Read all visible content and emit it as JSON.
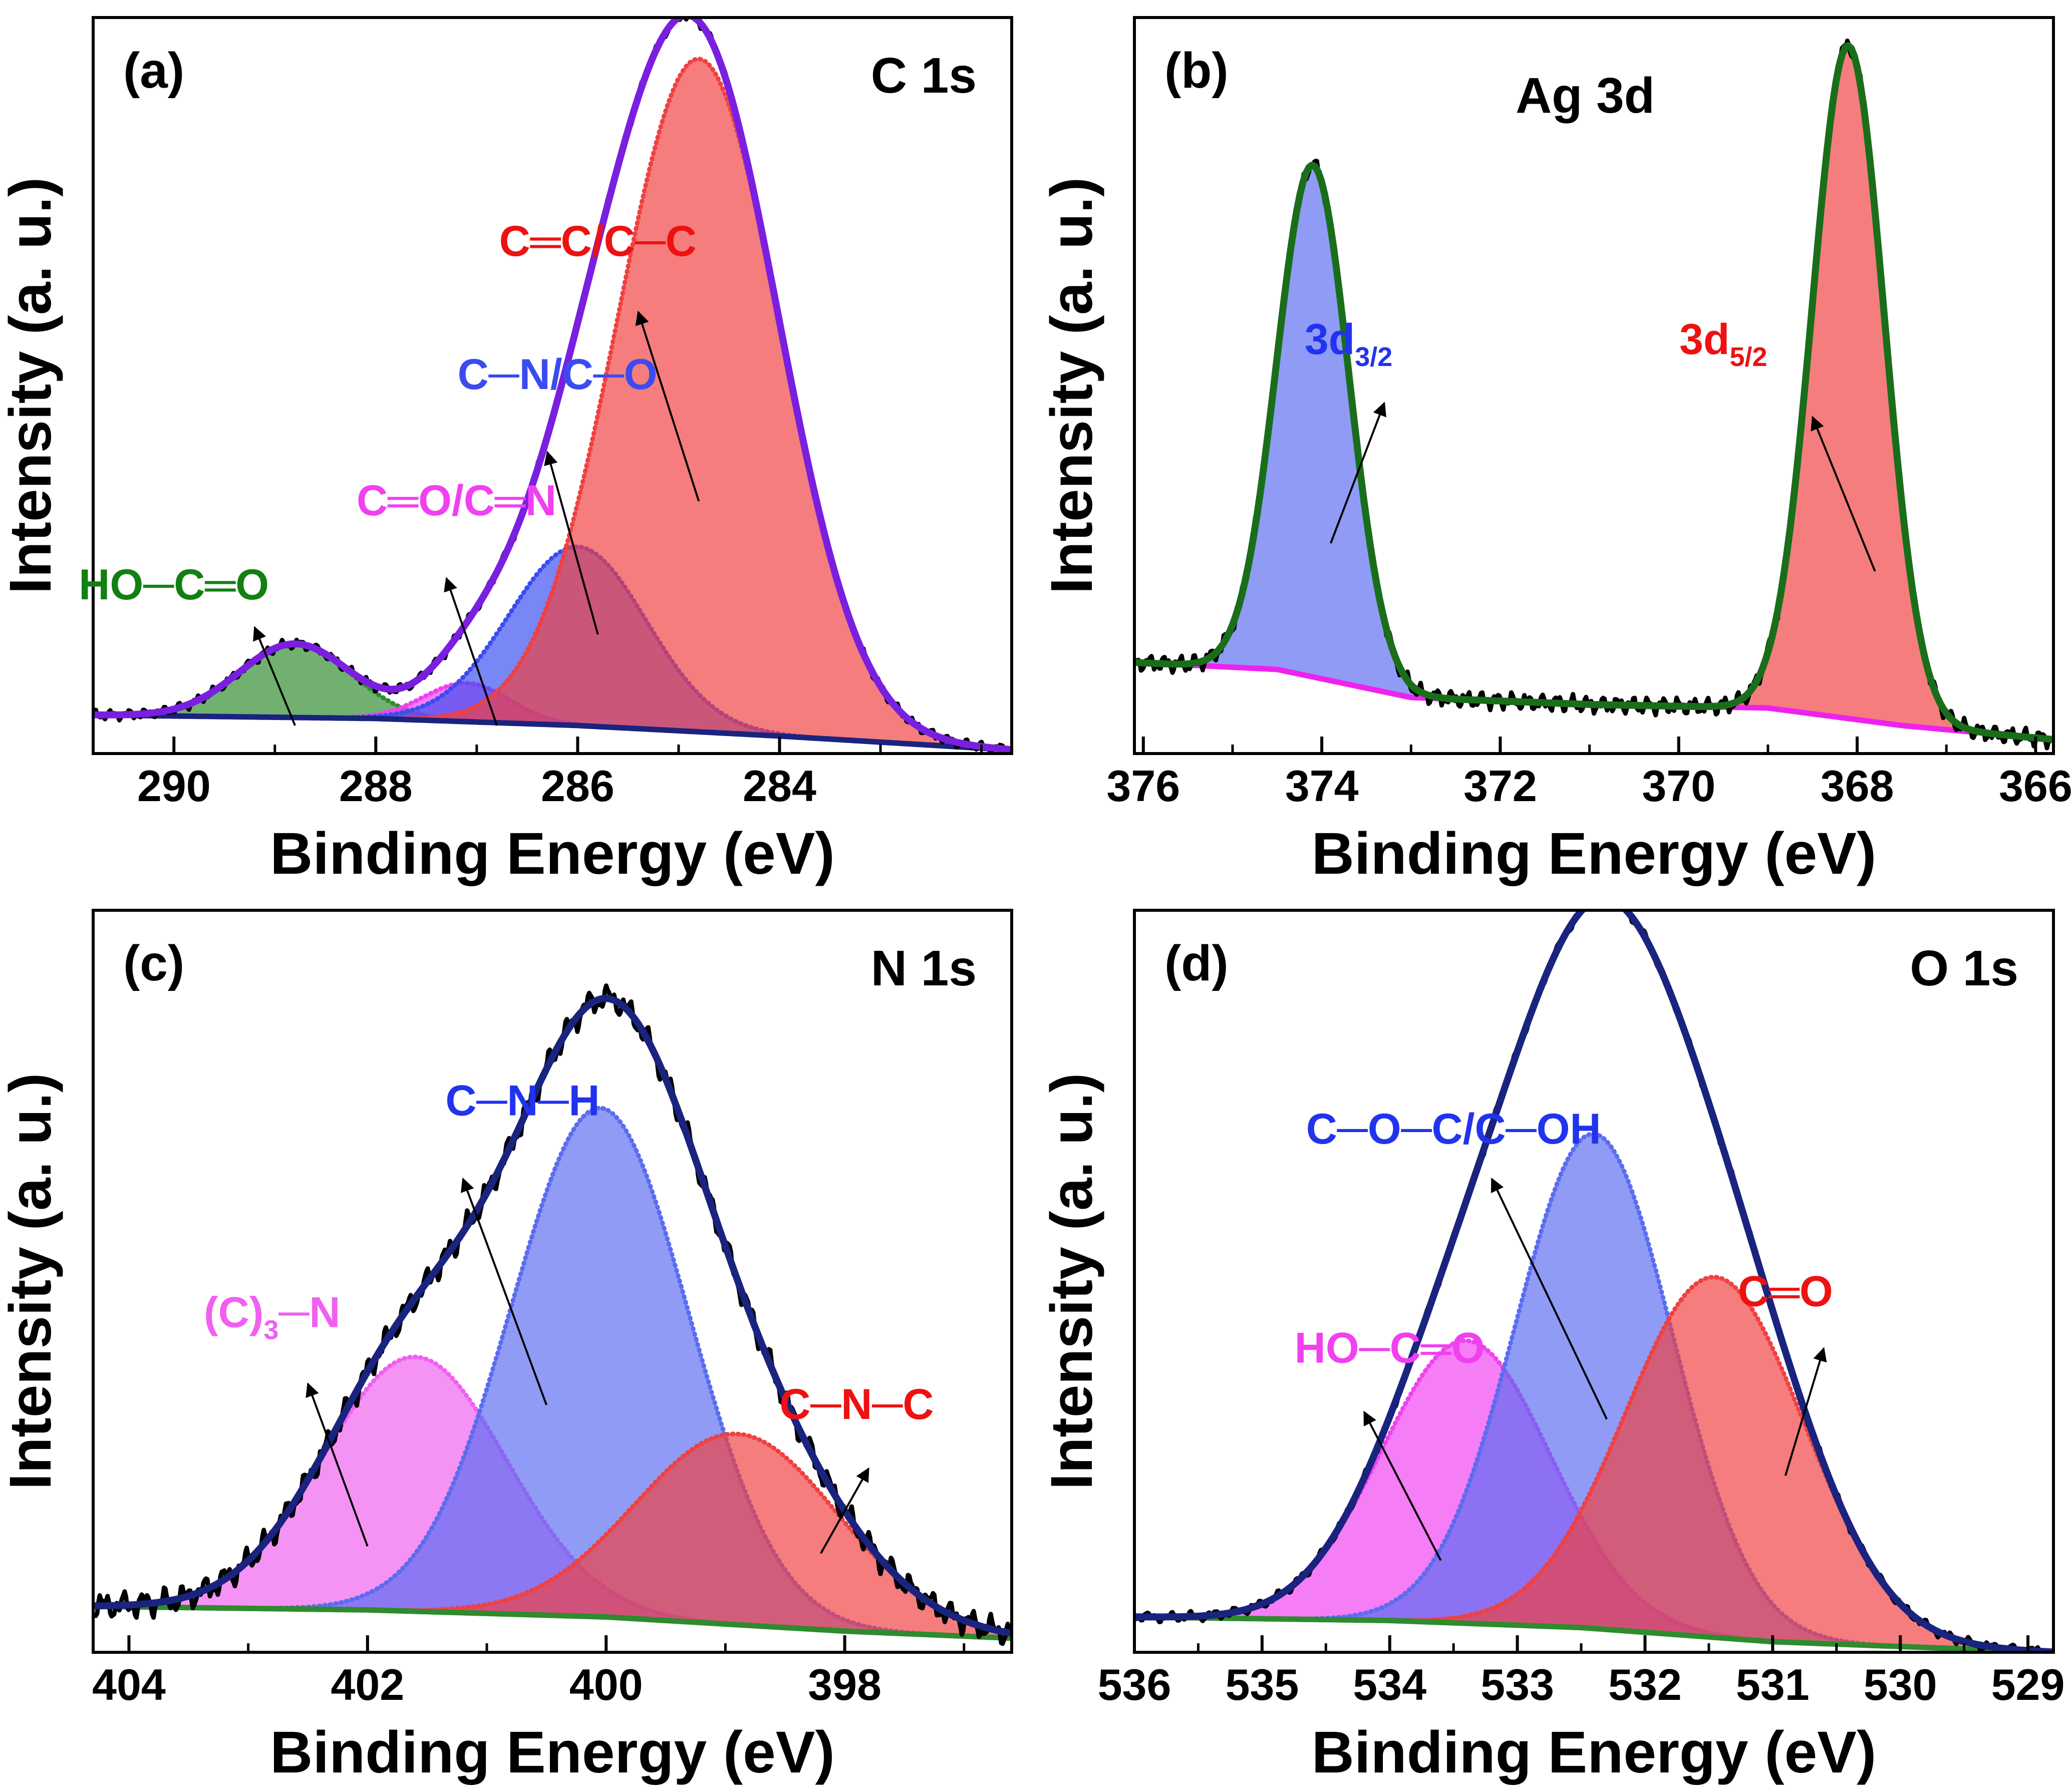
{
  "chart_data": [
    {
      "type": "area",
      "panel": "(a)",
      "title": "C 1s",
      "xlabel": "Binding Energy (eV)",
      "ylabel": "Intensity (a. u.)",
      "xlim": [
        290.8,
        281.7
      ],
      "ylim": [
        0,
        1.05
      ],
      "x_ticks": [
        290,
        288,
        286,
        284
      ],
      "fit_color": "#7a1fe0",
      "background": {
        "color": "#1a237e",
        "points": [
          [
            290.8,
            0.055
          ],
          [
            288.0,
            0.05
          ],
          [
            286.0,
            0.04
          ],
          [
            284.0,
            0.025
          ],
          [
            281.7,
            0.005
          ]
        ]
      },
      "peaks": [
        {
          "label": "HO─C═O",
          "center": 288.8,
          "height": 0.105,
          "fwhm": 1.3,
          "color": "#2e8b2e",
          "label_color": "#118011",
          "label_pos": [
            290.0,
            0.22
          ],
          "arrow_from": [
            288.8,
            0.04
          ],
          "arrow_to": [
            289.2,
            0.18
          ]
        },
        {
          "label": "C═O/C═N",
          "center": 287.1,
          "height": 0.055,
          "fwhm": 1.0,
          "color": "#f040f0",
          "label_pos": [
            287.2,
            0.34
          ],
          "arrow_from": [
            286.8,
            0.04
          ],
          "arrow_to": [
            287.3,
            0.25
          ]
        },
        {
          "label": "C─N/C─O",
          "center": 286.0,
          "height": 0.255,
          "fwhm": 1.6,
          "color": "#3a4cf0",
          "label_pos": [
            286.2,
            0.52
          ],
          "arrow_from": [
            285.8,
            0.17
          ],
          "arrow_to": [
            286.3,
            0.43
          ]
        },
        {
          "label": "C═C/C─C",
          "center": 284.8,
          "height": 0.96,
          "fwhm": 1.9,
          "color": "#f04040",
          "label_color": "#ee1111",
          "label_pos": [
            285.8,
            0.71
          ],
          "arrow_from": [
            284.8,
            0.36
          ],
          "arrow_to": [
            285.4,
            0.63
          ]
        }
      ]
    },
    {
      "type": "area",
      "panel": "(b)",
      "title": "Ag 3d",
      "xlabel": "Binding Energy (eV)",
      "ylabel": "Intensity (a. u.)",
      "xlim": [
        376.1,
        365.8
      ],
      "ylim": [
        0,
        1.05
      ],
      "x_ticks": [
        376,
        374,
        372,
        370,
        368,
        366
      ],
      "fit_color": "#1a6e1a",
      "background": {
        "color": "#ee22ee",
        "points": [
          [
            376.1,
            0.13
          ],
          [
            374.5,
            0.12
          ],
          [
            373.0,
            0.08
          ],
          [
            371.0,
            0.07
          ],
          [
            369.0,
            0.065
          ],
          [
            367.5,
            0.04
          ],
          [
            365.8,
            0.02
          ]
        ]
      },
      "peaks": [
        {
          "label": "3d",
          "label_sub": "3/2",
          "center": 374.1,
          "height": 0.73,
          "fwhm": 0.95,
          "color": "#5a6cf0",
          "label_color": "#2233ee",
          "label_pos": [
            373.7,
            0.57
          ],
          "arrow_from": [
            373.9,
            0.3
          ],
          "arrow_to": [
            373.3,
            0.5
          ]
        },
        {
          "label": "3d",
          "label_sub": "5/2",
          "center": 368.1,
          "height": 0.96,
          "fwhm": 0.95,
          "color": "#f04040",
          "label_color": "#ee1111",
          "label_pos": [
            369.5,
            0.57
          ],
          "arrow_from": [
            367.8,
            0.26
          ],
          "arrow_to": [
            368.5,
            0.48
          ]
        }
      ]
    },
    {
      "type": "area",
      "panel": "(c)",
      "title": "N 1s",
      "xlabel": "Binding Energy (eV)",
      "ylabel": "Intensity (a. u.)",
      "xlim": [
        404.3,
        396.6
      ],
      "ylim": [
        0,
        1.05
      ],
      "x_ticks": [
        404,
        402,
        400,
        398
      ],
      "fit_color": "#1a237e",
      "background": {
        "color": "#2e8b2e",
        "points": [
          [
            404.3,
            0.065
          ],
          [
            402.0,
            0.06
          ],
          [
            400.0,
            0.05
          ],
          [
            398.0,
            0.03
          ],
          [
            396.6,
            0.02
          ]
        ]
      },
      "peaks": [
        {
          "label": "(C)",
          "label_sub": "3",
          "label_tail": "─N",
          "center": 401.6,
          "height": 0.36,
          "fwhm": 1.8,
          "color": "#f060f0",
          "label_pos": [
            402.8,
            0.46
          ],
          "arrow_from": [
            402.0,
            0.15
          ],
          "arrow_to": [
            402.5,
            0.38
          ]
        },
        {
          "label": "C─N─H",
          "center": 400.05,
          "height": 0.72,
          "fwhm": 1.75,
          "color": "#5a6cf0",
          "label_color": "#2233ee",
          "label_pos": [
            400.7,
            0.76
          ],
          "arrow_from": [
            400.5,
            0.35
          ],
          "arrow_to": [
            401.2,
            0.67
          ]
        },
        {
          "label": "C─N─C",
          "center": 398.9,
          "height": 0.27,
          "fwhm": 2.0,
          "color": "#f04040",
          "label_color": "#ee1111",
          "label_pos": [
            397.9,
            0.33
          ],
          "arrow_from": [
            398.2,
            0.14
          ],
          "arrow_to": [
            397.8,
            0.26
          ]
        }
      ]
    },
    {
      "type": "area",
      "panel": "(d)",
      "title": "O 1s",
      "xlabel": "Binding Energy (eV)",
      "ylabel": "Intensity (a. u.)",
      "xlim": [
        536.0,
        528.8
      ],
      "ylim": [
        0,
        1.05
      ],
      "x_ticks": [
        536,
        535,
        534,
        533,
        532,
        531,
        530,
        529
      ],
      "fit_color": "#1a237e",
      "background": {
        "color": "#2e8b2e",
        "points": [
          [
            536.0,
            0.05
          ],
          [
            534.0,
            0.045
          ],
          [
            532.5,
            0.035
          ],
          [
            531.0,
            0.015
          ],
          [
            528.8,
            0.0
          ]
        ]
      },
      "peaks": [
        {
          "label": "HO─C═O",
          "center": 533.4,
          "height": 0.4,
          "fwhm": 1.55,
          "color": "#f040f0",
          "label_pos": [
            534.0,
            0.41
          ],
          "arrow_from": [
            533.6,
            0.13
          ],
          "arrow_to": [
            534.2,
            0.34
          ]
        },
        {
          "label": "C─O─C/C─OH",
          "center": 532.4,
          "height": 0.7,
          "fwhm": 1.45,
          "color": "#5a6cf0",
          "label_color": "#2233ee",
          "label_pos": [
            533.5,
            0.72
          ],
          "arrow_from": [
            532.3,
            0.33
          ],
          "arrow_to": [
            533.2,
            0.67
          ]
        },
        {
          "label": "C═O",
          "center": 531.45,
          "height": 0.51,
          "fwhm": 1.65,
          "color": "#f04040",
          "label_color": "#ee1111",
          "label_pos": [
            530.9,
            0.49
          ],
          "arrow_from": [
            530.9,
            0.25
          ],
          "arrow_to": [
            530.6,
            0.43
          ]
        }
      ]
    }
  ]
}
